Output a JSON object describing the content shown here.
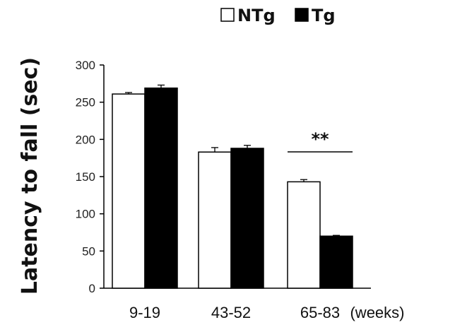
{
  "chart_data": {
    "type": "bar",
    "categories": [
      "9-19",
      "43-52",
      "65-83"
    ],
    "x_unit": "(weeks)",
    "ylabel": "Latency to fall (sec)",
    "xlabel": "",
    "ylim": [
      0,
      300
    ],
    "yticks": [
      0,
      50,
      100,
      150,
      200,
      250,
      300
    ],
    "legend_position": "top-right",
    "grid": false,
    "series": [
      {
        "name": "NTg",
        "values": [
          261,
          183,
          143
        ],
        "errors": [
          2,
          6,
          3
        ],
        "color": "#ffffff",
        "edge": "#000000"
      },
      {
        "name": "Tg",
        "values": [
          269,
          188,
          70
        ],
        "errors": [
          4,
          4,
          1
        ],
        "color": "#000000",
        "edge": "#000000"
      }
    ],
    "annotations": [
      {
        "text": "**",
        "category": "65-83"
      }
    ]
  }
}
